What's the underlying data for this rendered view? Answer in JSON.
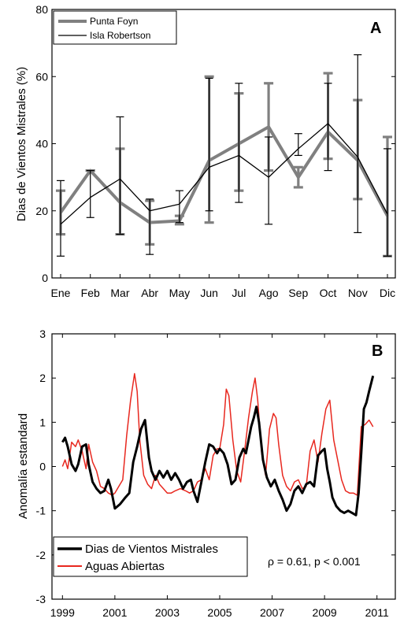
{
  "chart_data": [
    {
      "type": "line",
      "panel": "A",
      "xlabel": "",
      "ylabel": "Dias de Vientos Mistrales (%)",
      "ylim": [
        0,
        80
      ],
      "yticks": [
        0,
        20,
        40,
        60,
        80
      ],
      "categories": [
        "Ene",
        "Feb",
        "Mar",
        "Abr",
        "May",
        "Jun",
        "Jul",
        "Ago",
        "Sep",
        "Oct",
        "Nov",
        "Dic"
      ],
      "legend_position": "top-left",
      "grid": false,
      "series": [
        {
          "name": "Punta Foyn",
          "color": "#808080",
          "values": [
            19.5,
            32,
            22.5,
            16.5,
            17,
            35,
            40,
            45,
            30,
            43.5,
            35,
            18.5
          ],
          "err_low": [
            13,
            32,
            13,
            10,
            16,
            16.5,
            26,
            32,
            27,
            35.5,
            23.5,
            6.5
          ],
          "err_high": [
            26,
            32,
            38.5,
            23,
            18.5,
            60,
            55,
            58,
            33,
            61,
            53,
            42
          ]
        },
        {
          "name": "Isla Robertson",
          "color": "#000000",
          "values": [
            16,
            24,
            29.5,
            20,
            22,
            33,
            36.5,
            30,
            38.5,
            46,
            36,
            19
          ],
          "err_low": [
            6.5,
            18,
            13,
            7,
            16.5,
            20,
            22.5,
            16,
            36.5,
            32,
            13.5,
            6.5
          ],
          "err_high": [
            29,
            32,
            48,
            23.5,
            26,
            59.5,
            58,
            42,
            43,
            58,
            66.5,
            38.5
          ]
        }
      ]
    },
    {
      "type": "line",
      "panel": "B",
      "xlabel": "",
      "ylabel": "Anomalía estandard",
      "xlim": [
        1998.6,
        2011.7
      ],
      "ylim": [
        -3,
        3
      ],
      "xticks": [
        1999,
        2001,
        2003,
        2005,
        2007,
        2009,
        2011
      ],
      "yticks": [
        -3,
        -2,
        -1,
        0,
        1,
        2,
        3
      ],
      "legend_position": "bottom-left",
      "grid": false,
      "annotation": "ρ = 0.61, p < 0.001",
      "series": [
        {
          "name": "Dias de Vientos Mistrales",
          "color": "#000000",
          "x": [
            1999.0,
            1999.1,
            1999.2,
            1999.35,
            1999.5,
            1999.6,
            1999.75,
            1999.9,
            2000.0,
            2000.15,
            2000.3,
            2000.45,
            2000.6,
            2000.75,
            2000.85,
            2001.0,
            2001.2,
            2001.4,
            2001.55,
            2001.7,
            2001.85,
            2002.0,
            2002.15,
            2002.3,
            2002.4,
            2002.55,
            2002.7,
            2002.85,
            2003.0,
            2003.15,
            2003.3,
            2003.45,
            2003.6,
            2003.75,
            2003.9,
            2004.0,
            2004.15,
            2004.3,
            2004.45,
            2004.6,
            2004.75,
            2004.9,
            2005.0,
            2005.15,
            2005.3,
            2005.45,
            2005.6,
            2005.75,
            2005.9,
            2006.0,
            2006.1,
            2006.2,
            2006.3,
            2006.4,
            2006.5,
            2006.65,
            2006.8,
            2006.95,
            2007.1,
            2007.25,
            2007.4,
            2007.55,
            2007.7,
            2007.85,
            2008.0,
            2008.15,
            2008.3,
            2008.45,
            2008.6,
            2008.75,
            2008.9,
            2009.0,
            2009.1,
            2009.2,
            2009.3,
            2009.45,
            2009.6,
            2009.75,
            2009.9,
            2010.05,
            2010.2,
            2010.3,
            2010.4,
            2010.5,
            2010.6,
            2010.7,
            2010.85
          ],
          "y": [
            0.55,
            0.65,
            0.45,
            0.05,
            -0.1,
            0.05,
            0.45,
            0.5,
            0.05,
            -0.35,
            -0.5,
            -0.6,
            -0.55,
            -0.3,
            -0.5,
            -0.95,
            -0.85,
            -0.7,
            -0.6,
            0.1,
            0.45,
            0.85,
            1.05,
            0.2,
            -0.1,
            -0.3,
            -0.1,
            -0.25,
            -0.1,
            -0.3,
            -0.15,
            -0.3,
            -0.5,
            -0.35,
            -0.3,
            -0.55,
            -0.8,
            -0.35,
            0.1,
            0.5,
            0.45,
            0.3,
            0.4,
            0.3,
            0.05,
            -0.4,
            -0.3,
            0.2,
            0.4,
            0.3,
            0.6,
            0.9,
            1.1,
            1.35,
            1.0,
            0.15,
            -0.25,
            -0.45,
            -0.3,
            -0.55,
            -0.75,
            -1.0,
            -0.85,
            -0.55,
            -0.45,
            -0.6,
            -0.4,
            -0.35,
            -0.45,
            0.25,
            0.35,
            0.4,
            -0.05,
            -0.35,
            -0.7,
            -0.9,
            -1.0,
            -1.05,
            -1.0,
            -1.05,
            -1.1,
            -0.6,
            0.3,
            1.3,
            1.45,
            1.7,
            2.05
          ]
        },
        {
          "name": "Aguas  Abiertas",
          "color": "#e8281f",
          "x": [
            1999.0,
            1999.1,
            1999.2,
            1999.35,
            1999.5,
            1999.6,
            1999.75,
            1999.9,
            2000.0,
            2000.15,
            2000.3,
            2000.45,
            2000.6,
            2000.75,
            2000.9,
            2001.0,
            2001.15,
            2001.3,
            2001.45,
            2001.6,
            2001.75,
            2001.85,
            2001.95,
            2002.1,
            2002.25,
            2002.4,
            2002.55,
            2002.7,
            2002.85,
            2003.0,
            2003.15,
            2003.3,
            2003.5,
            2003.7,
            2003.85,
            2004.0,
            2004.15,
            2004.3,
            2004.45,
            2004.6,
            2004.75,
            2004.9,
            2005.0,
            2005.15,
            2005.25,
            2005.35,
            2005.5,
            2005.65,
            2005.8,
            2005.95,
            2006.1,
            2006.25,
            2006.35,
            2006.45,
            2006.6,
            2006.75,
            2006.9,
            2007.05,
            2007.15,
            2007.25,
            2007.4,
            2007.55,
            2007.7,
            2007.85,
            2008.0,
            2008.15,
            2008.3,
            2008.45,
            2008.6,
            2008.75,
            2008.9,
            2009.05,
            2009.2,
            2009.35,
            2009.5,
            2009.65,
            2009.8,
            2009.95,
            2010.1,
            2010.25,
            2010.4,
            2010.55,
            2010.7,
            2010.85
          ],
          "y": [
            0.0,
            0.15,
            -0.05,
            0.55,
            0.45,
            0.6,
            0.35,
            -0.05,
            0.5,
            0.1,
            -0.1,
            -0.45,
            -0.5,
            -0.6,
            -0.65,
            -0.6,
            -0.45,
            -0.3,
            0.7,
            1.5,
            2.1,
            1.7,
            0.6,
            -0.2,
            -0.4,
            -0.5,
            -0.2,
            -0.4,
            -0.5,
            -0.6,
            -0.6,
            -0.55,
            -0.5,
            -0.55,
            -0.6,
            -0.55,
            -0.35,
            -0.3,
            -0.05,
            -0.3,
            0.25,
            0.4,
            0.4,
            0.95,
            1.75,
            1.6,
            0.6,
            -0.1,
            -0.35,
            0.35,
            1.1,
            1.7,
            2.0,
            1.5,
            0.3,
            -0.2,
            0.85,
            1.2,
            1.1,
            0.5,
            -0.2,
            -0.45,
            -0.55,
            -0.35,
            -0.3,
            -0.5,
            -0.45,
            0.35,
            0.6,
            0.1,
            0.75,
            1.3,
            1.5,
            0.6,
            0.15,
            -0.3,
            -0.55,
            -0.6,
            -0.6,
            -0.65,
            0.9,
            0.95,
            1.05,
            0.9
          ]
        }
      ]
    }
  ],
  "panel_a": {
    "letter": "A",
    "ylabel": "Dias de Vientos Mistrales (%)",
    "legend": [
      {
        "label": "Punta Foyn"
      },
      {
        "label": "Isla Robertson"
      }
    ]
  },
  "panel_b": {
    "letter": "B",
    "ylabel": "Anomalía estandard",
    "annotation": "ρ = 0.61, p < 0.001",
    "legend": [
      {
        "label": "Dias de Vientos Mistrales"
      },
      {
        "label": "Aguas  Abiertas"
      }
    ]
  }
}
